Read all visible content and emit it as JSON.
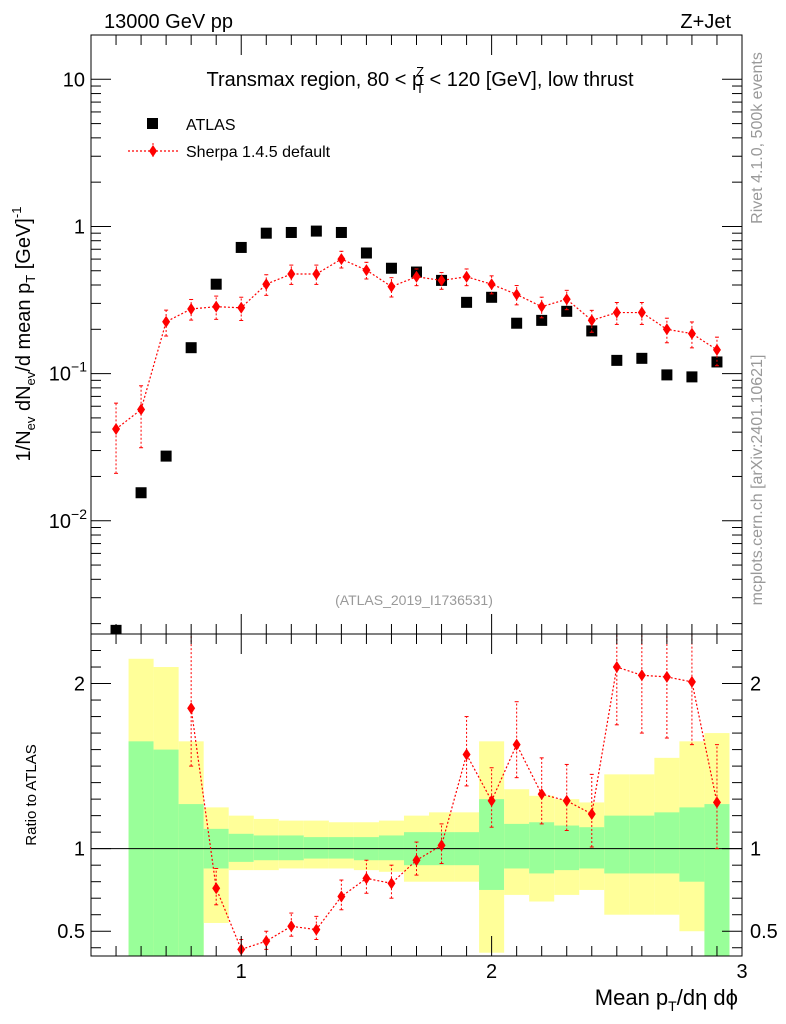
{
  "header": {
    "left": "13000 GeV pp",
    "right": "Z+Jet"
  },
  "side_labels": {
    "rivet": "Rivet 4.1.0,  500k events",
    "mcplots": "mcplots.cern.ch [arXiv:2401.10621]"
  },
  "chart_data": [
    {
      "type": "scatter",
      "log_y": true,
      "title": "Transmax region, 80 < p_T^Z < 120 [GeV], low thrust",
      "title_parts": {
        "pre": "Transmax region, 80 < p",
        "sup": "Z",
        "sub": "T",
        "post": " < 120 [GeV], low thrust"
      },
      "ylabel": "1/N_ev dN_ev/d mean p_T [GeV]^-1",
      "watermark": "(ATLAS_2019_I1736531)",
      "xlim": [
        0.4,
        3.0
      ],
      "ylim": [
        0.0017,
        20
      ],
      "yticks": [
        {
          "value": 10,
          "label": "10",
          "exp": ""
        },
        {
          "value": 1,
          "label": "1",
          "exp": ""
        },
        {
          "value": 0.1,
          "label": "10",
          "exp": "−1"
        },
        {
          "value": 0.01,
          "label": "10",
          "exp": "−2"
        }
      ],
      "legend": [
        {
          "name": "ATLAS",
          "marker": "square",
          "color": "#000000"
        },
        {
          "name": "Sherpa 1.4.5 default",
          "marker": "diamond",
          "color": "#ff0000"
        }
      ],
      "series": [
        {
          "name": "ATLAS",
          "x": [
            0.5,
            0.6,
            0.7,
            0.8,
            0.9,
            1.0,
            1.1,
            1.2,
            1.3,
            1.4,
            1.5,
            1.6,
            1.7,
            1.8,
            1.9,
            2.0,
            2.1,
            2.2,
            2.3,
            2.4,
            2.5,
            2.6,
            2.7,
            2.8,
            2.9
          ],
          "y": [
            0.0018,
            0.0155,
            0.0275,
            0.15,
            0.405,
            0.72,
            0.9,
            0.91,
            0.93,
            0.91,
            0.66,
            0.52,
            0.49,
            0.43,
            0.305,
            0.33,
            0.22,
            0.23,
            0.265,
            0.195,
            0.123,
            0.127,
            0.098,
            0.095,
            0.12
          ]
        },
        {
          "name": "Sherpa 1.4.5 default",
          "x": [
            0.5,
            0.6,
            0.7,
            0.8,
            0.9,
            1.0,
            1.1,
            1.2,
            1.3,
            1.4,
            1.5,
            1.6,
            1.7,
            1.8,
            1.9,
            2.0,
            2.1,
            2.2,
            2.3,
            2.4,
            2.5,
            2.6,
            2.7,
            2.8,
            2.9
          ],
          "y": [
            0.042,
            0.057,
            0.225,
            0.275,
            0.285,
            0.28,
            0.405,
            0.475,
            0.475,
            0.6,
            0.505,
            0.39,
            0.455,
            0.43,
            0.455,
            0.405,
            0.345,
            0.285,
            0.32,
            0.23,
            0.26,
            0.26,
            0.2,
            0.187,
            0.145
          ],
          "err": [
            0.5,
            0.45,
            0.2,
            0.16,
            0.18,
            0.18,
            0.16,
            0.15,
            0.15,
            0.13,
            0.13,
            0.15,
            0.13,
            0.13,
            0.13,
            0.14,
            0.15,
            0.16,
            0.15,
            0.17,
            0.17,
            0.17,
            0.19,
            0.2,
            0.22
          ]
        }
      ]
    },
    {
      "type": "scatter",
      "ylabel": "Ratio to ATLAS",
      "xlabel": "Mean p_T/dη dϕ",
      "xlabel_parts": {
        "pre": "Mean p",
        "sub": "T",
        "post": "/dη dϕ"
      },
      "xlim": [
        0.4,
        3.0
      ],
      "ylim": [
        0.35,
        2.3
      ],
      "xticks": [
        1,
        2,
        3
      ],
      "yticks": [
        {
          "value": 0.5,
          "label": "0.5"
        },
        {
          "value": 1,
          "label": "1"
        },
        {
          "value": 2,
          "label": "2"
        }
      ],
      "bands": {
        "x_edges": [
          0.55,
          0.65,
          0.75,
          0.85,
          0.95,
          1.05,
          1.15,
          1.25,
          1.35,
          1.45,
          1.55,
          1.65,
          1.75,
          1.85,
          1.95,
          2.05,
          2.15,
          2.25,
          2.35,
          2.45,
          2.55,
          2.65,
          2.75,
          2.85,
          2.95
        ],
        "yellow_lo": [
          0.2,
          0.2,
          0.2,
          0.55,
          0.87,
          0.87,
          0.88,
          0.88,
          0.88,
          0.87,
          0.86,
          0.8,
          0.8,
          0.8,
          0.37,
          0.72,
          0.68,
          0.72,
          0.75,
          0.6,
          0.6,
          0.6,
          0.5,
          0.2
        ],
        "yellow_hi": [
          2.15,
          2.1,
          1.65,
          1.25,
          1.2,
          1.18,
          1.17,
          1.17,
          1.16,
          1.16,
          1.17,
          1.2,
          1.22,
          1.22,
          1.65,
          1.36,
          1.32,
          1.3,
          1.28,
          1.45,
          1.45,
          1.55,
          1.65,
          1.7
        ],
        "green_lo": [
          0.2,
          0.2,
          0.2,
          0.88,
          0.92,
          0.93,
          0.93,
          0.94,
          0.94,
          0.93,
          0.93,
          0.9,
          0.9,
          0.9,
          0.75,
          0.88,
          0.85,
          0.87,
          0.88,
          0.85,
          0.85,
          0.85,
          0.8,
          0.2
        ],
        "green_hi": [
          1.65,
          1.6,
          1.27,
          1.12,
          1.09,
          1.08,
          1.08,
          1.07,
          1.07,
          1.07,
          1.08,
          1.1,
          1.1,
          1.1,
          1.3,
          1.15,
          1.16,
          1.14,
          1.13,
          1.2,
          1.2,
          1.22,
          1.25,
          1.27
        ]
      },
      "series": [
        {
          "name": "Sherpa 1.4.5 default",
          "x": [
            0.8,
            0.9,
            1.0,
            1.1,
            1.2,
            1.3,
            1.4,
            1.5,
            1.6,
            1.7,
            1.8,
            1.9,
            2.0,
            2.1,
            2.2,
            2.3,
            2.4,
            2.5,
            2.6,
            2.7,
            2.8,
            2.9
          ],
          "y": [
            1.85,
            0.76,
            0.39,
            0.44,
            0.53,
            0.51,
            0.71,
            0.82,
            0.79,
            0.93,
            1.02,
            1.57,
            1.29,
            1.63,
            1.33,
            1.29,
            1.21,
            2.1,
            2.05,
            2.04,
            2.01,
            1.28
          ],
          "err_lo": [
            0.35,
            0.1,
            0.05,
            0.05,
            0.06,
            0.06,
            0.08,
            0.09,
            0.09,
            0.09,
            0.11,
            0.19,
            0.16,
            0.2,
            0.18,
            0.18,
            0.2,
            0.35,
            0.35,
            0.37,
            0.38,
            0.28
          ],
          "err_hi": [
            0.45,
            0.12,
            0.06,
            0.06,
            0.08,
            0.08,
            0.1,
            0.11,
            0.11,
            0.11,
            0.13,
            0.23,
            0.2,
            0.26,
            0.22,
            0.22,
            0.24,
            0.45,
            0.45,
            0.47,
            0.48,
            0.35
          ]
        }
      ]
    }
  ]
}
